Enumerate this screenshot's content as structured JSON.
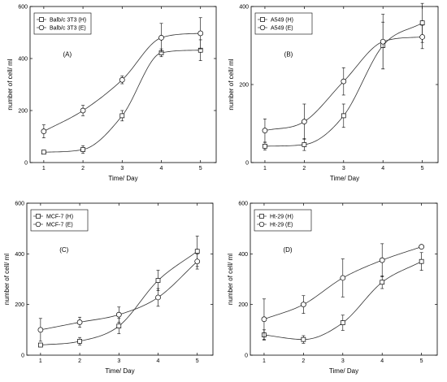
{
  "chart_data": [
    {
      "type": "scatter",
      "panel_label": "(A)",
      "xlabel": "Time/ Day",
      "ylabel": "number of cell/ ml",
      "xlim": [
        0.65,
        5.4
      ],
      "ylim": [
        0,
        600
      ],
      "x_ticks": [
        1,
        2,
        3,
        4,
        5
      ],
      "y_ticks": [
        0,
        200,
        400,
        600
      ],
      "legend_position": "top-left",
      "grid": false,
      "series": [
        {
          "name": "Balb/c 3T3 (H)",
          "marker": "square",
          "x": [
            1,
            2,
            3,
            4,
            5
          ],
          "values": [
            40,
            50,
            180,
            422,
            432
          ],
          "errors": [
            5,
            15,
            20,
            15,
            40
          ]
        },
        {
          "name": "Balb/c 3T3 (E)",
          "marker": "circle",
          "x": [
            1,
            2,
            3,
            4,
            5
          ],
          "values": [
            120,
            200,
            318,
            480,
            497
          ],
          "errors": [
            25,
            20,
            15,
            55,
            60
          ]
        }
      ]
    },
    {
      "type": "scatter",
      "panel_label": "(B)",
      "xlabel": "Time/ Day",
      "ylabel": "number of cell/ ml",
      "xlim": [
        0.65,
        5.4
      ],
      "ylim": [
        0,
        400
      ],
      "x_ticks": [
        1,
        2,
        3,
        4,
        5
      ],
      "y_ticks": [
        0,
        200,
        400
      ],
      "legend_position": "top-left",
      "grid": false,
      "series": [
        {
          "name": "A549 (H)",
          "marker": "square",
          "x": [
            1,
            2,
            3,
            4,
            5
          ],
          "values": [
            42,
            46,
            120,
            300,
            358
          ],
          "errors": [
            10,
            15,
            30,
            60,
            50
          ]
        },
        {
          "name": "A549 (E)",
          "marker": "circle",
          "x": [
            1,
            2,
            3,
            4,
            5
          ],
          "values": [
            82,
            105,
            208,
            310,
            322
          ],
          "errors": [
            30,
            45,
            35,
            70,
            30
          ]
        }
      ]
    },
    {
      "type": "scatter",
      "panel_label": "(C)",
      "xlabel": "Time/ Day",
      "ylabel": "number of cell/ ml",
      "xlim": [
        0.65,
        5.4
      ],
      "ylim": [
        0,
        600
      ],
      "x_ticks": [
        1,
        2,
        3,
        4,
        5
      ],
      "y_ticks": [
        0,
        200,
        400,
        600
      ],
      "legend_position": "top-left",
      "grid": false,
      "series": [
        {
          "name": "MCF-7 (H)",
          "marker": "square",
          "x": [
            1,
            2,
            3,
            4,
            5
          ],
          "values": [
            40,
            55,
            115,
            295,
            410
          ],
          "errors": [
            5,
            15,
            30,
            40,
            60
          ]
        },
        {
          "name": "MCF-7 (E)",
          "marker": "circle",
          "x": [
            1,
            2,
            3,
            4,
            5
          ],
          "values": [
            100,
            130,
            160,
            228,
            370
          ],
          "errors": [
            45,
            20,
            30,
            35,
            30
          ]
        }
      ]
    },
    {
      "type": "scatter",
      "panel_label": "(D)",
      "xlabel": "Time/ Day",
      "ylabel": "number of cell/ ml",
      "xlim": [
        0.65,
        5.4
      ],
      "ylim": [
        0,
        600
      ],
      "x_ticks": [
        1,
        2,
        3,
        4,
        5
      ],
      "y_ticks": [
        0,
        200,
        400,
        600
      ],
      "legend_position": "top-left",
      "grid": false,
      "series": [
        {
          "name": "Ht-29 (H)",
          "marker": "square",
          "x": [
            1,
            2,
            3,
            4,
            5
          ],
          "values": [
            80,
            62,
            128,
            288,
            370
          ],
          "errors": [
            20,
            15,
            30,
            25,
            35
          ]
        },
        {
          "name": "Ht-29 (E)",
          "marker": "circle",
          "x": [
            1,
            2,
            3,
            4,
            5
          ],
          "values": [
            142,
            200,
            305,
            375,
            428
          ],
          "errors": [
            80,
            35,
            75,
            65,
            5
          ]
        }
      ]
    }
  ]
}
